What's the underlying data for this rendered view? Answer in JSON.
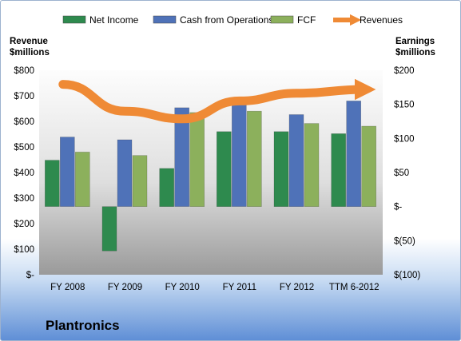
{
  "chart_data": {
    "type": "bar",
    "title": "Plantronics",
    "categories": [
      "FY 2008",
      "FY 2009",
      "FY 2010",
      "FY 2011",
      "FY 2012",
      "TTM 6-2012"
    ],
    "left_axis": {
      "label": "Revenue\n$millions",
      "range": [
        0,
        800
      ],
      "ticks": [
        0,
        100,
        200,
        300,
        400,
        500,
        600,
        700,
        800
      ],
      "tick_labels": [
        "$-",
        "$100",
        "$200",
        "$300",
        "$400",
        "$500",
        "$600",
        "$700",
        "$800"
      ]
    },
    "right_axis": {
      "label": "Earnings\n$millions",
      "range": [
        -100,
        200
      ],
      "ticks": [
        -100,
        -50,
        0,
        50,
        100,
        150,
        200
      ],
      "tick_labels": [
        "$(100)",
        "$(50)",
        "$-",
        "$50",
        "$100",
        "$150",
        "$200"
      ]
    },
    "series": [
      {
        "name": "Net Income",
        "axis": "right",
        "color": "#2e8a4e",
        "values": [
          68,
          -65,
          56,
          110,
          110,
          107
        ]
      },
      {
        "name": "Cash from Operations",
        "axis": "right",
        "color": "#4f72b8",
        "values": [
          102,
          98,
          145,
          160,
          135,
          155
        ]
      },
      {
        "name": "FCF",
        "axis": "right",
        "color": "#8cb05c",
        "values": [
          80,
          75,
          138,
          140,
          122,
          118
        ]
      },
      {
        "name": "Revenues",
        "axis": "left",
        "type": "line",
        "color": "#ef8a35",
        "values": [
          745,
          640,
          610,
          680,
          710,
          725
        ]
      }
    ],
    "legend_position": "top",
    "grid": false
  }
}
